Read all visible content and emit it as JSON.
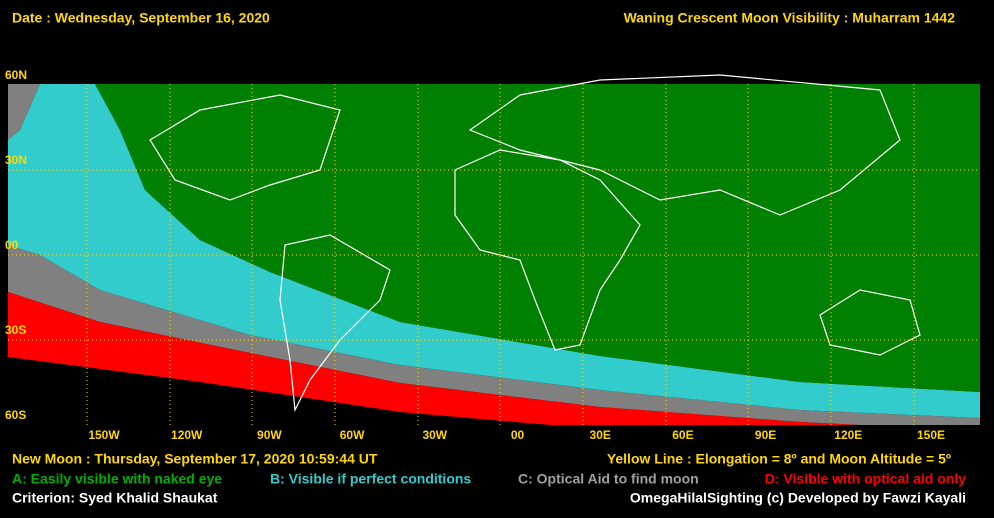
{
  "header": {
    "date": "Date : Wednesday, September 16, 2020",
    "title": "Waning Crescent Moon Visibility : Muharram 1442"
  },
  "map": {
    "lat_labels": [
      "60N",
      "30N",
      "00",
      "30S",
      "60S"
    ],
    "lon_labels": [
      "150W",
      "120W",
      "90W",
      "60W",
      "30W",
      "00",
      "30E",
      "60E",
      "90E",
      "120E",
      "150E"
    ]
  },
  "footer": {
    "new_moon": "New Moon : Thursday, September 17, 2020  10:59:44  UT",
    "yellow_line": "Yellow Line : Elongation = 8º  and Moon Altitude = 5º",
    "legend": [
      "A: Easily visible with naked eye",
      "B: Visible if perfect conditions",
      "C: Optical Aid to find moon",
      "D: Visible with optical aid only"
    ],
    "criterion": "Criterion: Syed Khalid Shaukat",
    "credit": "OmegaHilalSighting  (c)  Developed by Fawzi Kayali"
  }
}
